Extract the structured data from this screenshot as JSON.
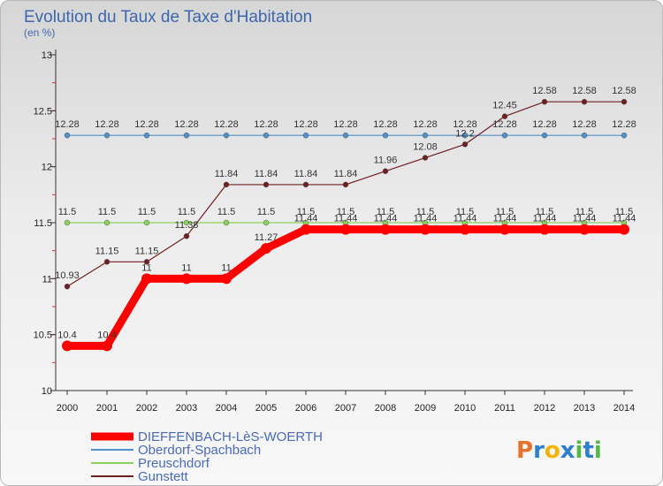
{
  "chart_data": {
    "type": "line",
    "title": "Evolution du Taux de Taxe d'Habitation",
    "subtitle": "(en %)",
    "xlabel": "",
    "ylabel": "",
    "x": [
      "2000",
      "2001",
      "2002",
      "2003",
      "2004",
      "2005",
      "2006",
      "2007",
      "2008",
      "2009",
      "2010",
      "2011",
      "2012",
      "2013",
      "2014"
    ],
    "ylim": [
      10,
      13
    ],
    "yticks": [
      10,
      10.5,
      11,
      11.5,
      12,
      12.5,
      13
    ],
    "ytick_labels": [
      "10",
      "10.5",
      "11",
      "11.5",
      "12",
      "12.5",
      "13"
    ],
    "grid": false,
    "legend_position": "bottom-left",
    "series": [
      {
        "name": "DIEFFENBACH-LèS-WOERTH",
        "color": "#ff0000",
        "values": [
          10.4,
          10.4,
          11,
          11,
          11,
          11.27,
          11.44,
          11.44,
          11.44,
          11.44,
          11.44,
          11.44,
          11.44,
          11.44,
          11.44
        ],
        "labels": [
          "10.4",
          "10.4",
          "11",
          "11",
          "11",
          "11.27",
          "11.44",
          "11.44",
          "11.44",
          "11.44",
          "11.44",
          "11.44",
          "11.44",
          "11.44",
          "11.44"
        ]
      },
      {
        "name": "Oberdorf-Spachbach",
        "color": "#4f91c8",
        "values": [
          12.28,
          12.28,
          12.28,
          12.28,
          12.28,
          12.28,
          12.28,
          12.28,
          12.28,
          12.28,
          12.28,
          12.28,
          12.28,
          12.28,
          12.28
        ],
        "labels": [
          "12.28",
          "12.28",
          "12.28",
          "12.28",
          "12.28",
          "12.28",
          "12.28",
          "12.28",
          "12.28",
          "12.28",
          "12.28",
          "12.28",
          "12.28",
          "12.28",
          "12.28"
        ]
      },
      {
        "name": "Preuschdorf",
        "color": "#8bd25c",
        "values": [
          11.5,
          11.5,
          11.5,
          11.5,
          11.5,
          11.5,
          11.5,
          11.5,
          11.5,
          11.5,
          11.5,
          11.5,
          11.5,
          11.5,
          11.5
        ],
        "labels": [
          "11.5",
          "11.5",
          "11.5",
          "11.5",
          "11.5",
          "11.5",
          "11.5",
          "11.5",
          "11.5",
          "11.5",
          "11.5",
          "11.5",
          "11.5",
          "11.5",
          "11.5"
        ]
      },
      {
        "name": "Gunstett",
        "color": "#6e1f22",
        "values": [
          10.93,
          11.15,
          11.15,
          11.38,
          11.84,
          11.84,
          11.84,
          11.84,
          11.96,
          12.08,
          12.2,
          12.45,
          12.58,
          12.58,
          12.58
        ],
        "labels": [
          "10.93",
          "11.15",
          "11.15",
          "11.38",
          "11.84",
          "11.84",
          "11.84",
          "11.84",
          "11.96",
          "12.08",
          "12.2",
          "12.45",
          "12.58",
          "12.58",
          "12.58"
        ]
      }
    ]
  },
  "branding": {
    "logo_text": "Proxiti",
    "logo_colors": [
      "#e8742b",
      "#2f7fcf",
      "#f2b400",
      "#56b848"
    ]
  }
}
